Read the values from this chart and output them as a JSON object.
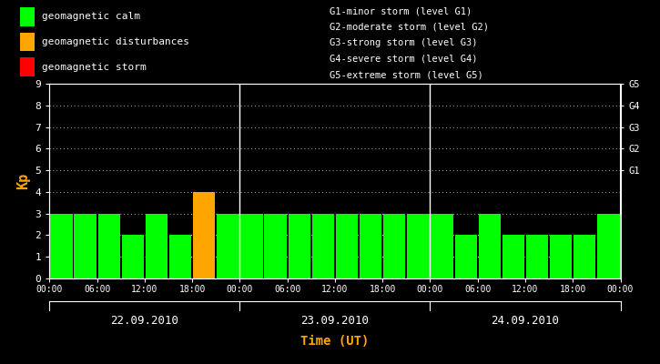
{
  "background_color": "#000000",
  "plot_bg_color": "#000000",
  "text_color": "#ffffff",
  "ylabel_color": "#ffa500",
  "xlabel_color": "#ffa500",
  "axis_color": "#ffffff",
  "grid_color": "#ffffff",
  "ylabel": "Kp",
  "xlabel": "Time (UT)",
  "ylim": [
    0,
    9
  ],
  "yticks": [
    0,
    1,
    2,
    3,
    4,
    5,
    6,
    7,
    8,
    9
  ],
  "right_ytick_positions": [
    5,
    6,
    7,
    8,
    9
  ],
  "right_ytick_labels": [
    "G1",
    "G2",
    "G3",
    "G4",
    "G5"
  ],
  "days": [
    "22.09.2010",
    "23.09.2010",
    "24.09.2010"
  ],
  "bar_values": [
    [
      3,
      3,
      3,
      2,
      3,
      2,
      4,
      3
    ],
    [
      3,
      3,
      3,
      3,
      3,
      3,
      3,
      3
    ],
    [
      3,
      2,
      3,
      2,
      2,
      2,
      2,
      3
    ]
  ],
  "bar_colors": [
    [
      "#00ff00",
      "#00ff00",
      "#00ff00",
      "#00ff00",
      "#00ff00",
      "#00ff00",
      "#ffa500",
      "#00ff00"
    ],
    [
      "#00ff00",
      "#00ff00",
      "#00ff00",
      "#00ff00",
      "#00ff00",
      "#00ff00",
      "#00ff00",
      "#00ff00"
    ],
    [
      "#00ff00",
      "#00ff00",
      "#00ff00",
      "#00ff00",
      "#00ff00",
      "#00ff00",
      "#00ff00",
      "#00ff00"
    ]
  ],
  "xtick_labels": [
    "00:00",
    "06:00",
    "12:00",
    "18:00",
    "00:00",
    "06:00",
    "12:00",
    "18:00",
    "00:00",
    "06:00",
    "12:00",
    "18:00",
    "00:00"
  ],
  "legend_items": [
    {
      "label": "geomagnetic calm",
      "color": "#00ff00"
    },
    {
      "label": "geomagnetic disturbances",
      "color": "#ffa500"
    },
    {
      "label": "geomagnetic storm",
      "color": "#ff0000"
    }
  ],
  "legend_right_lines": [
    "G1-minor storm (level G1)",
    "G2-moderate storm (level G2)",
    "G3-strong storm (level G3)",
    "G4-severe storm (level G4)",
    "G5-extreme storm (level G5)"
  ],
  "bars_per_day": 8,
  "num_days": 3
}
